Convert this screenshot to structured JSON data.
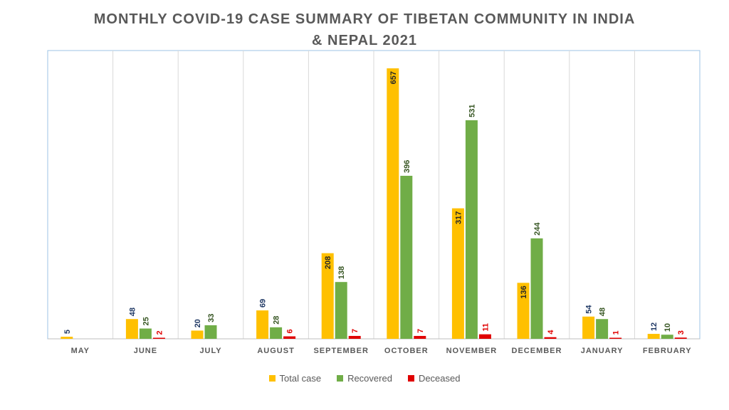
{
  "title_line1": "MONTHLY COVID-19 CASE SUMMARY OF TIBETAN COMMUNITY IN INDIA",
  "title_line2": "& NEPAL 2021",
  "colors": {
    "total_case": "#FFC000",
    "recovered": "#70AD47",
    "deceased": "#E00000",
    "label_total": "#1F3864",
    "label_recovered": "#375623",
    "label_deceased": "#E00000",
    "axis_text": "#595959",
    "gridline": "#D9D9D9",
    "plot_border": "#9DC3E6"
  },
  "legend": [
    {
      "name": "Total case",
      "color_key": "total_case"
    },
    {
      "name": "Recovered",
      "color_key": "recovered"
    },
    {
      "name": "Deceased",
      "color_key": "deceased"
    }
  ],
  "chart_data": {
    "type": "bar",
    "title": "MONTHLY COVID-19 CASE SUMMARY OF TIBETAN COMMUNITY IN INDIA & NEPAL 2021",
    "categories": [
      "MAY",
      "JUNE",
      "JULY",
      "AUGUST",
      "SEPTEMBER",
      "OCTOBER",
      "NOVEMBER",
      "DECEMBER",
      "JANUARY",
      "FEBRUARY"
    ],
    "series": [
      {
        "name": "Total case",
        "values": [
          5,
          48,
          20,
          69,
          208,
          657,
          317,
          136,
          54,
          12
        ]
      },
      {
        "name": "Recovered",
        "values": [
          null,
          25,
          33,
          28,
          138,
          396,
          531,
          244,
          48,
          10
        ]
      },
      {
        "name": "Deceased",
        "values": [
          null,
          2,
          null,
          6,
          7,
          7,
          11,
          4,
          1,
          3
        ]
      }
    ],
    "ylim": [
      0,
      657
    ],
    "grid": "vertical category separators",
    "legend_position": "bottom"
  }
}
